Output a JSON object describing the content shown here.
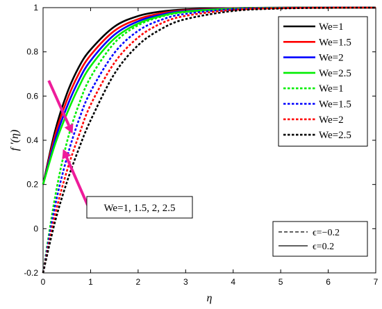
{
  "chart_data": {
    "type": "line",
    "title": "",
    "xlabel": "η",
    "ylabel": "f ′(η)",
    "xlim": [
      0,
      7
    ],
    "ylim": [
      -0.2,
      1.0
    ],
    "xticks": [
      "0",
      "1",
      "2",
      "3",
      "4",
      "5",
      "6",
      "7"
    ],
    "yticks": [
      "-0.2",
      "0",
      "0.2",
      "0.4",
      "0.6",
      "0.8",
      "1"
    ],
    "grid": false,
    "legend_position": "top-right",
    "series": [
      {
        "name": "We=1",
        "color": "#000000",
        "style": "solid",
        "x": [
          0,
          0.25,
          0.5,
          0.75,
          1,
          1.5,
          2,
          2.5,
          3,
          4,
          5,
          6,
          7
        ],
        "y": [
          0.2,
          0.44,
          0.61,
          0.73,
          0.81,
          0.914,
          0.962,
          0.983,
          0.992,
          0.998,
          1.0,
          1.0,
          1.0
        ]
      },
      {
        "name": "We=1.5",
        "color": "#ff0000",
        "style": "solid",
        "x": [
          0,
          0.25,
          0.5,
          0.75,
          1,
          1.5,
          2,
          2.5,
          3,
          4,
          5,
          6,
          7
        ],
        "y": [
          0.2,
          0.42,
          0.58,
          0.7,
          0.785,
          0.895,
          0.948,
          0.975,
          0.988,
          0.997,
          0.999,
          1.0,
          1.0
        ]
      },
      {
        "name": "We=2",
        "color": "#0000ff",
        "style": "solid",
        "x": [
          0,
          0.25,
          0.5,
          0.75,
          1,
          1.5,
          2,
          2.5,
          3,
          4,
          5,
          6,
          7
        ],
        "y": [
          0.2,
          0.4,
          0.55,
          0.67,
          0.76,
          0.877,
          0.938,
          0.969,
          0.985,
          0.996,
          0.999,
          1.0,
          1.0
        ]
      },
      {
        "name": "We=2.5",
        "color": "#00ee00",
        "style": "solid",
        "x": [
          0,
          0.25,
          0.5,
          0.75,
          1,
          1.5,
          2,
          2.5,
          3,
          4,
          5,
          6,
          7
        ],
        "y": [
          0.2,
          0.38,
          0.52,
          0.64,
          0.735,
          0.86,
          0.928,
          0.963,
          0.982,
          0.995,
          0.999,
          1.0,
          1.0
        ]
      },
      {
        "name": "We=1",
        "color": "#00ee00",
        "style": "dashed",
        "x": [
          0,
          0.25,
          0.5,
          0.75,
          1,
          1.5,
          2,
          2.5,
          3,
          4,
          5,
          6,
          7
        ],
        "y": [
          -0.2,
          0.14,
          0.39,
          0.56,
          0.685,
          0.84,
          0.92,
          0.96,
          0.98,
          0.995,
          0.999,
          1.0,
          1.0
        ]
      },
      {
        "name": "We=1.5",
        "color": "#0000ff",
        "style": "dashed",
        "x": [
          0,
          0.25,
          0.5,
          0.75,
          1,
          1.5,
          2,
          2.5,
          3,
          4,
          5,
          6,
          7
        ],
        "y": [
          -0.2,
          0.1,
          0.32,
          0.49,
          0.62,
          0.795,
          0.895,
          0.946,
          0.972,
          0.993,
          0.998,
          1.0,
          1.0
        ]
      },
      {
        "name": "We=2",
        "color": "#ff0000",
        "style": "dashed",
        "x": [
          0,
          0.25,
          0.5,
          0.75,
          1,
          1.5,
          2,
          2.5,
          3,
          4,
          5,
          6,
          7
        ],
        "y": [
          -0.2,
          0.06,
          0.26,
          0.42,
          0.56,
          0.75,
          0.865,
          0.93,
          0.963,
          0.99,
          0.998,
          1.0,
          1.0
        ]
      },
      {
        "name": "We=2.5",
        "color": "#000000",
        "style": "dashed",
        "x": [
          0,
          0.25,
          0.5,
          0.75,
          1,
          1.5,
          2,
          2.5,
          3,
          4,
          5,
          6,
          7
        ],
        "y": [
          -0.2,
          0.03,
          0.21,
          0.36,
          0.49,
          0.7,
          0.83,
          0.905,
          0.948,
          0.985,
          0.996,
          0.999,
          1.0
        ]
      }
    ],
    "epsilon_legend": [
      {
        "label": "ϵ=−0.2",
        "style": "dashed"
      },
      {
        "label": "ϵ=0.2",
        "style": "solid"
      }
    ],
    "annotation": {
      "label": "We=1, 1.5, 2, 2.5",
      "arrow_color": "#ee1c9a",
      "arrows": [
        {
          "from": [
            0.12,
            0.67
          ],
          "to": [
            0.62,
            0.43
          ]
        },
        {
          "from": [
            0.95,
            0.1
          ],
          "to": [
            0.42,
            0.36
          ]
        }
      ]
    }
  }
}
